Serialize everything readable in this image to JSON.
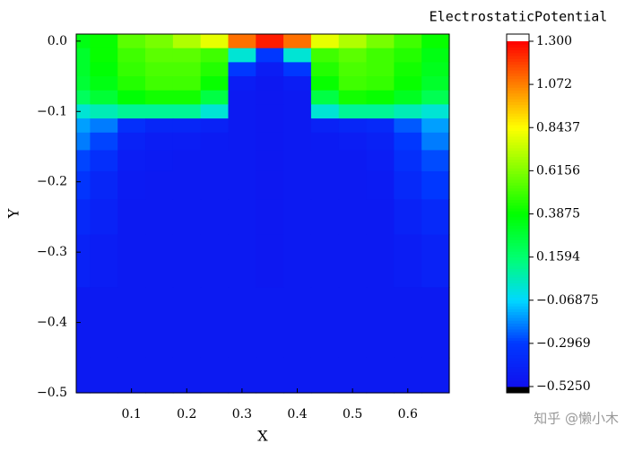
{
  "chart_data": {
    "type": "heatmap",
    "title": "ElectrostaticPotential",
    "x_label": "X",
    "y_label": "Y",
    "watermark": "知乎 @懒小木",
    "x": [
      0,
      0.05,
      0.1,
      0.15,
      0.2,
      0.25,
      0.3,
      0.35,
      0.4,
      0.45,
      0.5,
      0.55,
      0.6,
      0.65
    ],
    "y": [
      0.0,
      -0.02,
      -0.04,
      -0.06,
      -0.08,
      -0.1,
      -0.12,
      -0.14,
      -0.17,
      -0.2,
      -0.25,
      -0.3,
      -0.4,
      -0.5
    ],
    "z": [
      [
        0.35,
        0.4,
        0.55,
        0.6,
        0.7,
        0.8,
        1.1,
        1.25,
        1.1,
        0.8,
        0.7,
        0.6,
        0.5,
        0.4
      ],
      [
        0.3,
        0.4,
        0.5,
        0.55,
        0.55,
        0.5,
        0.0,
        -0.3,
        0.0,
        0.5,
        0.55,
        0.5,
        0.45,
        0.35
      ],
      [
        0.3,
        0.38,
        0.48,
        0.52,
        0.52,
        0.45,
        -0.3,
        -0.45,
        -0.3,
        0.45,
        0.52,
        0.5,
        0.42,
        0.33
      ],
      [
        0.28,
        0.35,
        0.45,
        0.5,
        0.5,
        0.4,
        -0.45,
        -0.48,
        -0.45,
        0.4,
        0.5,
        0.48,
        0.4,
        0.3
      ],
      [
        0.2,
        0.28,
        0.38,
        0.42,
        0.42,
        0.25,
        -0.47,
        -0.48,
        -0.47,
        0.25,
        0.42,
        0.4,
        0.32,
        0.22
      ],
      [
        0.0,
        0.05,
        0.1,
        0.1,
        0.1,
        0.0,
        -0.47,
        -0.48,
        -0.47,
        0.0,
        0.1,
        0.1,
        0.05,
        0.0
      ],
      [
        -0.15,
        -0.2,
        -0.35,
        -0.4,
        -0.4,
        -0.42,
        -0.47,
        -0.48,
        -0.47,
        -0.42,
        -0.4,
        -0.38,
        -0.25,
        -0.15
      ],
      [
        -0.2,
        -0.28,
        -0.42,
        -0.45,
        -0.45,
        -0.46,
        -0.47,
        -0.48,
        -0.47,
        -0.46,
        -0.45,
        -0.43,
        -0.3,
        -0.2
      ],
      [
        -0.28,
        -0.35,
        -0.45,
        -0.46,
        -0.47,
        -0.47,
        -0.47,
        -0.48,
        -0.47,
        -0.47,
        -0.47,
        -0.45,
        -0.35,
        -0.27
      ],
      [
        -0.32,
        -0.4,
        -0.46,
        -0.47,
        -0.47,
        -0.47,
        -0.47,
        -0.48,
        -0.47,
        -0.47,
        -0.47,
        -0.46,
        -0.38,
        -0.3
      ],
      [
        -0.38,
        -0.42,
        -0.47,
        -0.47,
        -0.47,
        -0.47,
        -0.47,
        -0.48,
        -0.47,
        -0.47,
        -0.47,
        -0.47,
        -0.42,
        -0.38
      ],
      [
        -0.42,
        -0.45,
        -0.47,
        -0.47,
        -0.47,
        -0.47,
        -0.47,
        -0.48,
        -0.47,
        -0.47,
        -0.47,
        -0.47,
        -0.45,
        -0.42
      ],
      [
        -0.47,
        -0.47,
        -0.47,
        -0.47,
        -0.47,
        -0.47,
        -0.47,
        -0.47,
        -0.47,
        -0.47,
        -0.47,
        -0.47,
        -0.47,
        -0.47
      ],
      [
        -0.47,
        -0.47,
        -0.47,
        -0.47,
        -0.47,
        -0.47,
        -0.47,
        -0.47,
        -0.47,
        -0.47,
        -0.47,
        -0.47,
        -0.47,
        -0.47
      ]
    ],
    "xlim": [
      0,
      0.675
    ],
    "ylim": [
      -0.5,
      0.01
    ],
    "xticks": [
      0.1,
      0.2,
      0.3,
      0.4,
      0.5,
      0.6
    ],
    "yticks": [
      {
        "value": 0.0,
        "label": "0.0"
      },
      {
        "value": -0.1,
        "label": "−0.1"
      },
      {
        "value": -0.2,
        "label": "−0.2"
      },
      {
        "value": -0.3,
        "label": "−0.3"
      },
      {
        "value": -0.4,
        "label": "−0.4"
      },
      {
        "value": -0.5,
        "label": "−0.5"
      }
    ],
    "clim": [
      -0.525,
      1.3
    ],
    "cticks": [
      {
        "value": 1.3,
        "label": "1.300"
      },
      {
        "value": 1.072,
        "label": "1.072"
      },
      {
        "value": 0.8437,
        "label": "0.8437"
      },
      {
        "value": 0.6156,
        "label": "0.6156"
      },
      {
        "value": 0.3875,
        "label": "0.3875"
      },
      {
        "value": 0.1594,
        "label": "0.1594"
      },
      {
        "value": -0.06875,
        "label": "−0.06875"
      },
      {
        "value": -0.2969,
        "label": "−0.2969"
      },
      {
        "value": -0.525,
        "label": "−0.5250"
      }
    ],
    "colormap": [
      "#1010ee",
      "#0038ff",
      "#00d8ff",
      "#00ff70",
      "#00ff00",
      "#80ff00",
      "#ffff00",
      "#ff8000",
      "#ff0000"
    ],
    "over_color": "#ffffff",
    "under_color": "#000000"
  }
}
